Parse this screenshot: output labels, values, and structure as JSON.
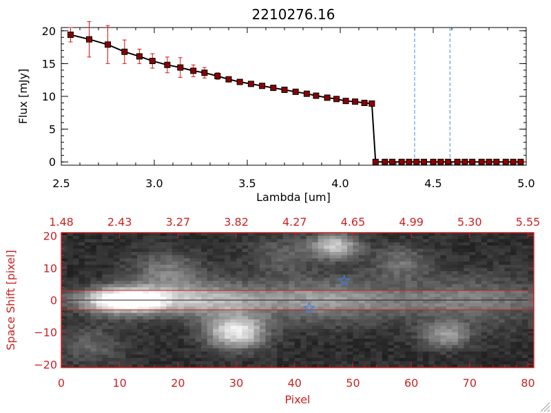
{
  "colors": {
    "axis": "#000000",
    "accent": "#cc2222",
    "error_bar": "#dd1111",
    "marker": "#8b0000",
    "dashed": "#3a8fd9",
    "star": "#3a7fd9"
  },
  "chart_data": [
    {
      "type": "line",
      "title": "2210276.16",
      "xlabel": "Lambda [um]",
      "ylabel": "Flux [mJy]",
      "xlim": [
        2.5,
        5.0
      ],
      "ylim": [
        -0.5,
        20.5
      ],
      "x_ticks": [
        2.5,
        3.0,
        3.5,
        4.0,
        4.5,
        5.0
      ],
      "x_tick_labels": [
        "2.5",
        "3.0",
        "3.5",
        "4.0",
        "4.5",
        "5.0"
      ],
      "y_ticks": [
        0,
        5,
        10,
        15,
        20
      ],
      "y_tick_labels": [
        "0",
        "5",
        "10",
        "15",
        "20"
      ],
      "grid": false,
      "series": [
        {
          "x": [
            2.55,
            2.65,
            2.75,
            2.84,
            2.92,
            2.99,
            3.07,
            3.14,
            3.21,
            3.27,
            3.34,
            3.4,
            3.46,
            3.52,
            3.58,
            3.64,
            3.7,
            3.76,
            3.82,
            3.87,
            3.93,
            3.98,
            4.03,
            4.08,
            4.13,
            4.17,
            4.19,
            4.24,
            4.28,
            4.33,
            4.37,
            4.41,
            4.45,
            4.5,
            4.54,
            4.58,
            4.63,
            4.67,
            4.71,
            4.76,
            4.8,
            4.84,
            4.89,
            4.93,
            4.97
          ],
          "y": [
            19.4,
            18.7,
            17.9,
            16.8,
            16.1,
            15.4,
            14.8,
            14.4,
            13.9,
            13.6,
            13.1,
            12.6,
            12.2,
            11.9,
            11.6,
            11.3,
            11.0,
            10.7,
            10.4,
            10.1,
            9.8,
            9.6,
            9.3,
            9.2,
            9.0,
            8.9,
            0.0,
            0.0,
            0.0,
            0.0,
            0.0,
            0.0,
            0.0,
            0.0,
            0.0,
            0.0,
            0.0,
            0.0,
            0.0,
            0.0,
            0.0,
            0.0,
            0.0,
            0.0,
            0.0
          ],
          "yerr": [
            1.1,
            2.7,
            2.9,
            1.8,
            1.1,
            1.1,
            1.2,
            1.5,
            0.9,
            0.8,
            0.5,
            0,
            0,
            0,
            0,
            0,
            0,
            0,
            0,
            0,
            0,
            0,
            0,
            0,
            0,
            0,
            0,
            0,
            0,
            0,
            0,
            0,
            0,
            0,
            0,
            0,
            0,
            0,
            0,
            0,
            0,
            0,
            0,
            0,
            0
          ]
        }
      ],
      "vlines": [
        4.4,
        4.59
      ]
    },
    {
      "type": "heatmap",
      "xlabel": "Pixel",
      "ylabel": "Space Shift [pixel]",
      "xlim": [
        0,
        81
      ],
      "ylim": [
        -21,
        21
      ],
      "x_ticks": [
        0,
        10,
        20,
        30,
        40,
        50,
        60,
        70,
        80
      ],
      "x_tick_labels": [
        "0",
        "10",
        "20",
        "30",
        "40",
        "50",
        "60",
        "70",
        "80"
      ],
      "y_ticks": [
        -20,
        -10,
        0,
        10,
        20
      ],
      "y_tick_labels": [
        "−20",
        "−10",
        "0",
        "10",
        "20"
      ],
      "top_tick_labels": [
        "1.48",
        "2.43",
        "3.27",
        "3.82",
        "4.27",
        "4.65",
        "4.99",
        "5.30",
        "5.55"
      ],
      "hlines": [
        3,
        -3
      ],
      "stars": [
        {
          "x": 48.5,
          "y": 6
        },
        {
          "x": 42.5,
          "y": -2.5
        }
      ],
      "blobs": [
        {
          "x": 11,
          "y": 0,
          "size": 7,
          "peak": 1.0
        },
        {
          "x": 25,
          "y": 0,
          "size": 10,
          "peak": 0.45
        },
        {
          "x": 45,
          "y": 0,
          "size": 12,
          "peak": 0.35
        },
        {
          "x": 70,
          "y": 0,
          "size": 14,
          "peak": 0.25
        },
        {
          "x": 30,
          "y": -10,
          "size": 5,
          "peak": 0.75
        },
        {
          "x": 47,
          "y": 17,
          "size": 4,
          "peak": 0.6
        },
        {
          "x": 66,
          "y": -11,
          "size": 4,
          "peak": 0.4
        },
        {
          "x": 18,
          "y": 9,
          "size": 6,
          "peak": 0.3
        },
        {
          "x": 58,
          "y": 12,
          "size": 5,
          "peak": 0.25
        },
        {
          "x": 5,
          "y": -14,
          "size": 6,
          "peak": 0.2
        },
        {
          "x": 38,
          "y": 14,
          "size": 6,
          "peak": 0.2
        }
      ]
    }
  ]
}
